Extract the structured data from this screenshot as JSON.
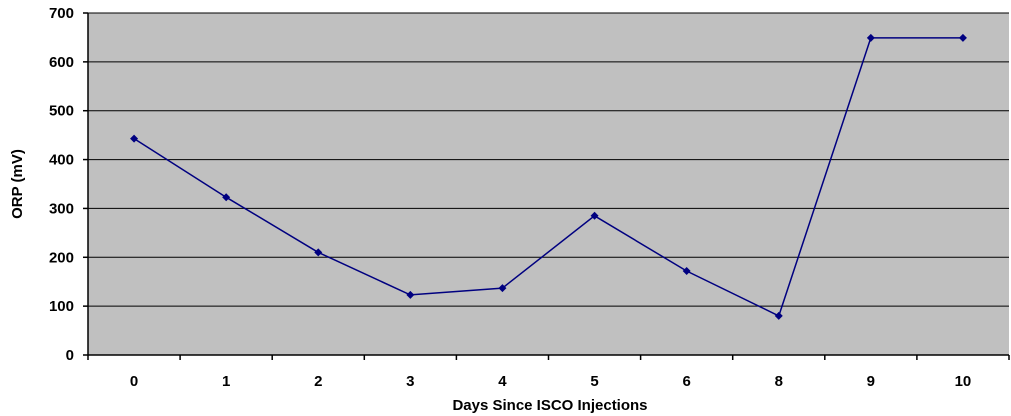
{
  "chart_data": {
    "type": "line",
    "title": "",
    "xlabel": "Days Since ISCO Injections",
    "ylabel": "ORP (mV)",
    "categories": [
      "0",
      "1",
      "2",
      "3",
      "4",
      "5",
      "6",
      "8",
      "9",
      "10"
    ],
    "series": [
      {
        "values": [
          443,
          323,
          210,
          123,
          137,
          285,
          172,
          80,
          649,
          649
        ],
        "color": "#000080"
      }
    ],
    "ylim": [
      0,
      700
    ],
    "yticks": [
      0,
      100,
      200,
      300,
      400,
      500,
      600,
      700
    ],
    "grid": "horizontal",
    "legend": "none",
    "plot_background": "#c0c0c0"
  }
}
